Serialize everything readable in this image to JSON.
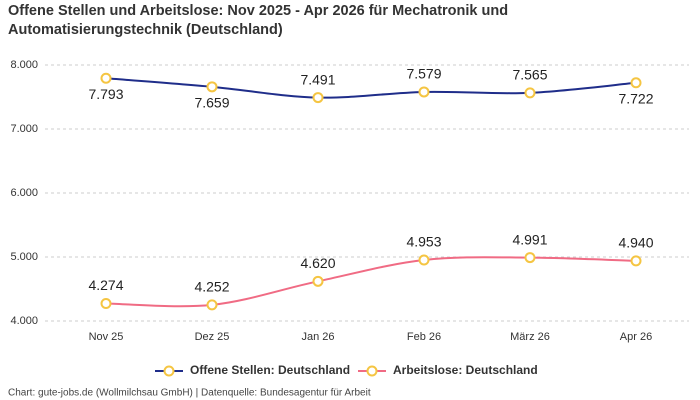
{
  "chart_data": {
    "type": "line",
    "title": "Offene Stellen und Arbeitslose: Nov 2025 - Apr 2026 für Mechatronik und Automatisierungstechnik (Deutschland)",
    "source": "Chart: gute-jobs.de (Wollmilchsau GmbH) | Datenquelle: Bundesagentur für Arbeit",
    "categories": [
      "Nov 25",
      "Dez 25",
      "Jan 26",
      "Feb 26",
      "März 26",
      "Apr 26"
    ],
    "series": [
      {
        "name": "Offene Stellen: Deutschland",
        "color": "#1f2d8a",
        "values": [
          7793,
          7659,
          7491,
          7579,
          7565,
          7722
        ],
        "value_labels": [
          "7.793",
          "7.659",
          "7.491",
          "7.579",
          "7.565",
          "7.722"
        ]
      },
      {
        "name": "Arbeitslose: Deutschland",
        "color": "#f06b84",
        "values": [
          4274,
          4252,
          4620,
          4953,
          4991,
          4940
        ],
        "value_labels": [
          "4.274",
          "4.252",
          "4.620",
          "4.953",
          "4.991",
          "4.940"
        ]
      }
    ],
    "marker_color": "#f5c542",
    "ylim": [
      4000,
      8000
    ],
    "yticks": [
      {
        "value": 4000,
        "label": "4.000"
      },
      {
        "value": 5000,
        "label": "5.000"
      },
      {
        "value": 6000,
        "label": "6.000"
      },
      {
        "value": 7000,
        "label": "7.000"
      },
      {
        "value": 8000,
        "label": "8.000"
      }
    ],
    "grid": true
  }
}
